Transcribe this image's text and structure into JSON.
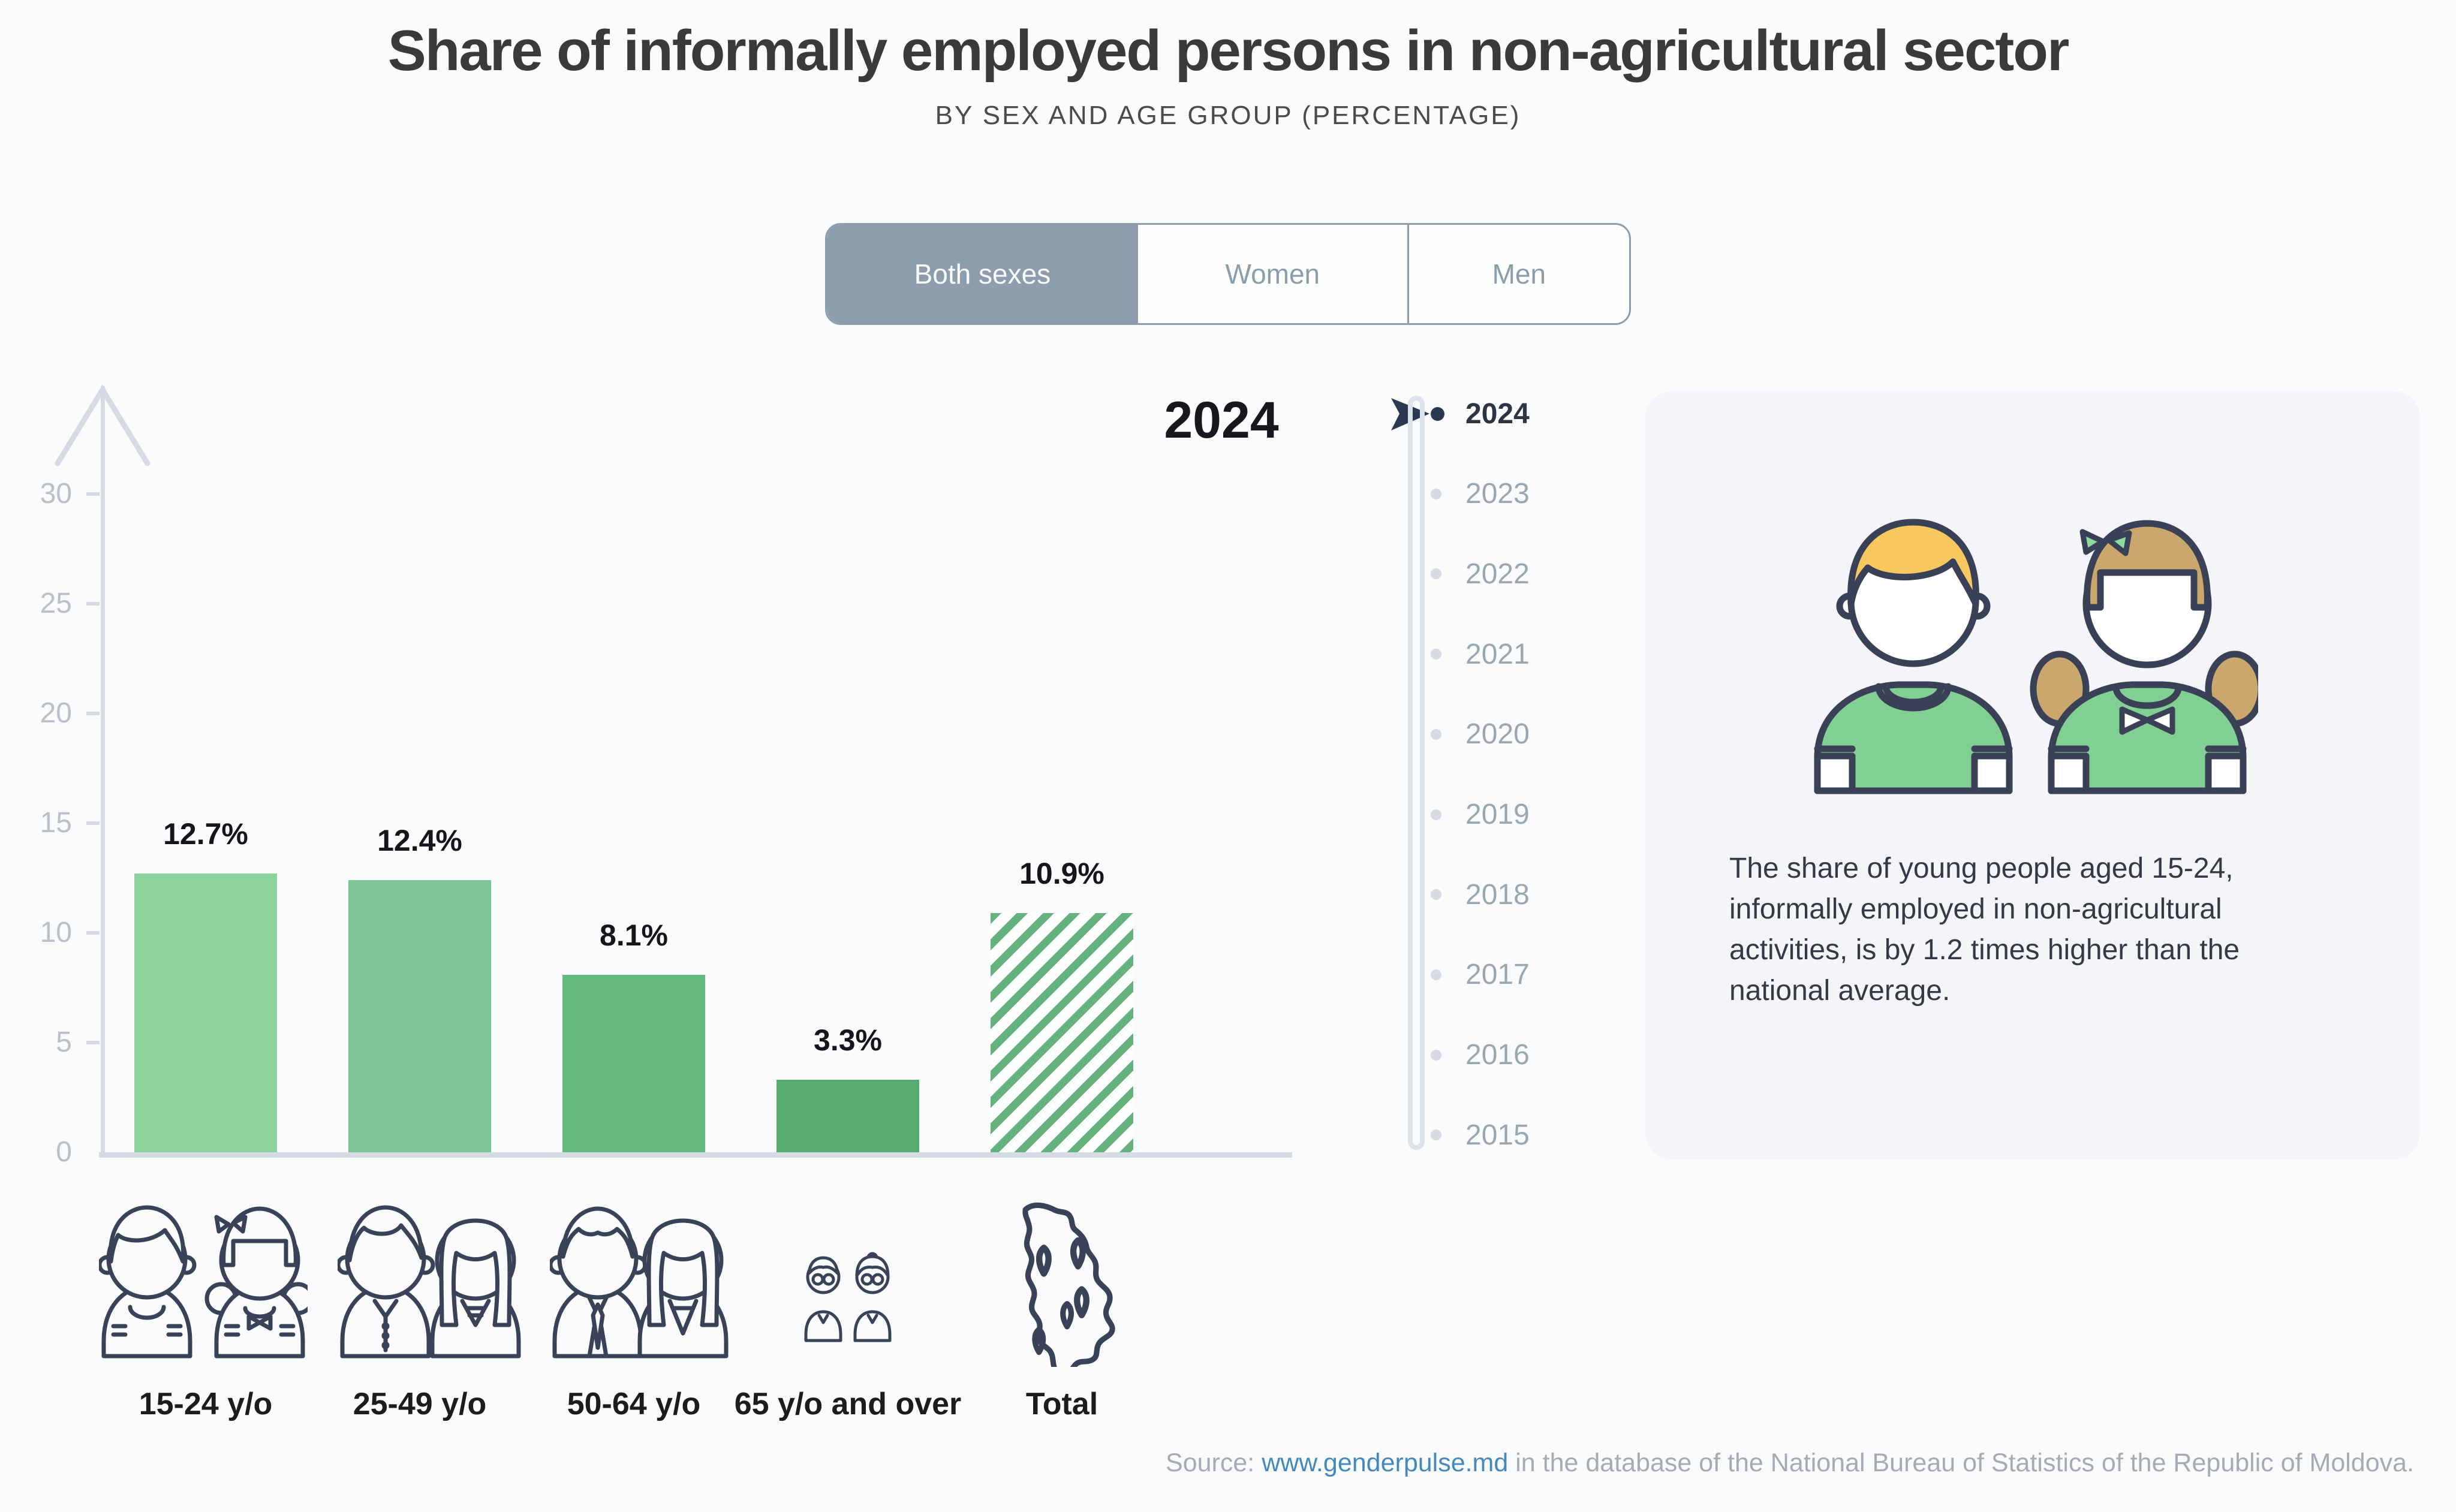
{
  "header": {
    "title": "Share of informally employed persons in non-agricultural sector",
    "subtitle": "BY SEX AND AGE GROUP (PERCENTAGE)"
  },
  "tabs": {
    "items": [
      {
        "label": "Both sexes",
        "selected": true
      },
      {
        "label": "Women",
        "selected": false
      },
      {
        "label": "Men",
        "selected": false
      }
    ]
  },
  "chart_data": {
    "type": "bar",
    "title": "Share of informally employed persons in non-agricultural sector",
    "subtitle": "By sex and age group (percentage)",
    "year_label": "2024",
    "categories": [
      "15-24 y/o",
      "25-49 y/o",
      "50-64 y/o",
      "65 y/o and over",
      "Total"
    ],
    "values": [
      12.7,
      12.4,
      8.1,
      3.3,
      10.9
    ],
    "value_labels": [
      "12.7%",
      "12.4%",
      "8.1%",
      "3.3%",
      "10.9%"
    ],
    "bar_styles": [
      {
        "fill": "#8dd39e"
      },
      {
        "fill": "#7ec795"
      },
      {
        "fill": "#65ba80"
      },
      {
        "fill": "#55ab70"
      },
      {
        "hatch": "#66b27e"
      }
    ],
    "ylim": [
      0,
      30
    ],
    "yticks": [
      0,
      5,
      10,
      15,
      20,
      25,
      30
    ],
    "grid": false,
    "legend": null
  },
  "timeline": {
    "selected_year": "2024",
    "years": [
      "2024",
      "2023",
      "2022",
      "2021",
      "2020",
      "2019",
      "2018",
      "2017",
      "2016",
      "2015"
    ]
  },
  "info_card": {
    "text": "The share of young people aged 15-24, informally employed in non-agricultural activities, is by 1.2 times higher than the national average."
  },
  "icons": {
    "groups": [
      "young-couple-icon",
      "adult-couple-icon",
      "older-couple-icon",
      "elderly-couple-icon",
      "moldova-map-icon"
    ]
  },
  "source": {
    "prefix": "Source: ",
    "link_text": "www.genderpulse.md",
    "suffix": " in the database of the National Bureau of Statistics of the Republic of Moldova."
  },
  "colors": {
    "accent_navy": "#2b3850",
    "tab_gray_blue": "#8e9dac",
    "axis_gray": "#d6dbe3",
    "card_bg": "#f3f5f8",
    "link_blue": "#4589bc",
    "hatch_green": "#66b27e",
    "illustration_green": "#82cf93",
    "boy_hair": "#f6c85f",
    "girl_hair": "#c9a76d"
  }
}
